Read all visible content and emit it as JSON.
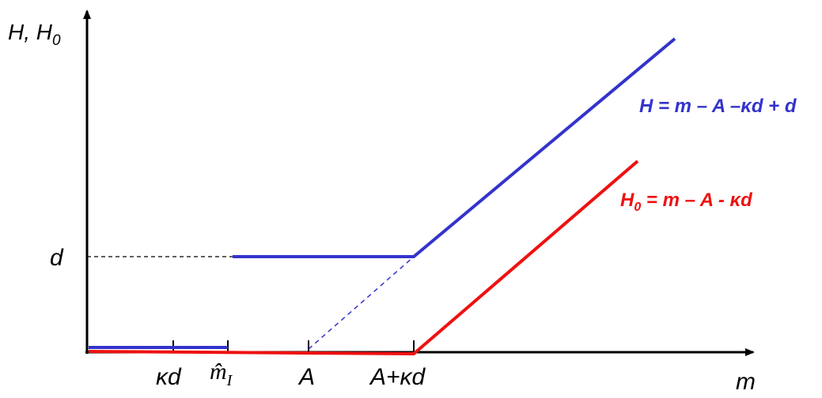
{
  "axes": {
    "y_label": "H, H",
    "y_label_sub": "0",
    "x_label": "m"
  },
  "y_ticks": {
    "d": "d"
  },
  "x_ticks": {
    "kd": "κd",
    "m_hat": "m̂",
    "m_hat_sub": "I",
    "A": "A",
    "A_kd": "A+κd"
  },
  "equations": {
    "H": "H = m – A –κd + d",
    "H0_prefix": "H",
    "H0_sub": "0",
    "H0_rest": " = m – A - κd"
  },
  "colors": {
    "H_line": "#3333cc",
    "H0_line": "#ee1111",
    "axis": "#000000"
  }
}
